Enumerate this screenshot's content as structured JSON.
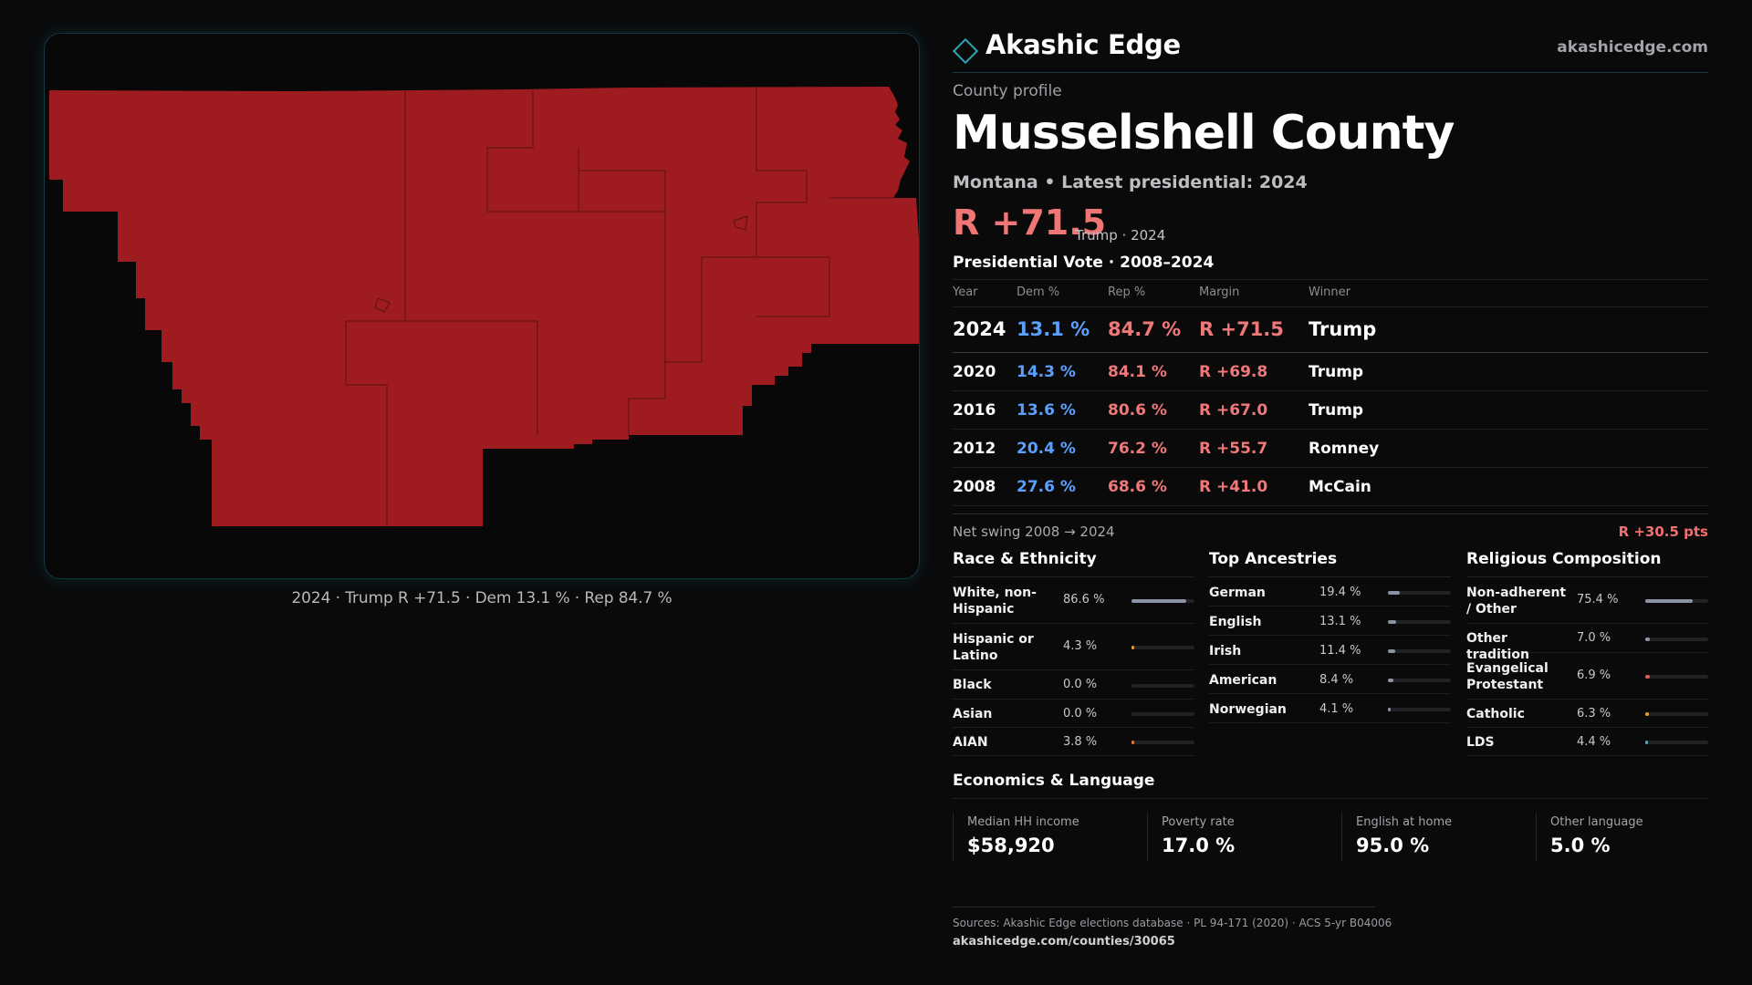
{
  "map": {
    "fill_color": "#9e1b1f",
    "caption": "2024 · Trump  R +71.5 · Dem 13.1 % · Rep 84.7 %"
  },
  "brand": {
    "name": "Akashic Edge",
    "url": "akashicedge.com",
    "icon": "diamond-logo-icon"
  },
  "profile": {
    "kicker": "County profile",
    "title": "Musselshell County",
    "subtitle": "Montana • Latest presidential: 2024",
    "headline_margin": "R +71.5",
    "headline_note": "Trump · 2024"
  },
  "vote": {
    "section_title": "Presidential Vote · 2008–2024",
    "headers": {
      "year": "Year",
      "dem": "Dem %",
      "rep": "Rep %",
      "margin": "Margin",
      "winner": "Winner"
    },
    "rows": [
      {
        "year": "2024",
        "dem": "13.1 %",
        "rep": "84.7 %",
        "margin": "R +71.5",
        "winner": "Trump"
      },
      {
        "year": "2020",
        "dem": "14.3 %",
        "rep": "84.1 %",
        "margin": "R +69.8",
        "winner": "Trump"
      },
      {
        "year": "2016",
        "dem": "13.6 %",
        "rep": "80.6 %",
        "margin": "R +67.0",
        "winner": "Trump"
      },
      {
        "year": "2012",
        "dem": "20.4 %",
        "rep": "76.2 %",
        "margin": "R +55.7",
        "winner": "Romney"
      },
      {
        "year": "2008",
        "dem": "27.6 %",
        "rep": "68.6 %",
        "margin": "R +41.0",
        "winner": "McCain"
      }
    ],
    "swing_label": "Net swing 2008 → 2024",
    "swing_value": "R +30.5 pts"
  },
  "race": {
    "title": "Race & Ethnicity",
    "items": [
      {
        "label": "White, non-Hispanic",
        "value": "86.6 %",
        "fraction": 0.866,
        "color": "#8a94a6"
      },
      {
        "label": "Hispanic or Latino",
        "value": "4.3 %",
        "fraction": 0.043,
        "color": "#e0a030"
      },
      {
        "label": "Black",
        "value": "0.0 %",
        "fraction": 0.0,
        "color": "#8a94a6"
      },
      {
        "label": "Asian",
        "value": "0.0 %",
        "fraction": 0.0,
        "color": "#8a94a6"
      },
      {
        "label": "AIAN",
        "value": "3.8 %",
        "fraction": 0.038,
        "color": "#e07a3a"
      }
    ]
  },
  "ancestry": {
    "title": "Top Ancestries",
    "items": [
      {
        "label": "German",
        "value": "19.4 %",
        "fraction": 0.194,
        "color": "#8a94a6"
      },
      {
        "label": "English",
        "value": "13.1 %",
        "fraction": 0.131,
        "color": "#8a94a6"
      },
      {
        "label": "Irish",
        "value": "11.4 %",
        "fraction": 0.114,
        "color": "#8a94a6"
      },
      {
        "label": "American",
        "value": "8.4 %",
        "fraction": 0.084,
        "color": "#8a94a6"
      },
      {
        "label": "Norwegian",
        "value": "4.1 %",
        "fraction": 0.041,
        "color": "#8a94a6"
      }
    ]
  },
  "religion": {
    "title": "Religious Composition",
    "items": [
      {
        "label": "Non-adherent / Other",
        "value": "75.4 %",
        "fraction": 0.754,
        "color": "#8a94a6"
      },
      {
        "label": "Other tradition",
        "value": "7.0 %",
        "fraction": 0.07,
        "color": "#8a94a6"
      },
      {
        "label": "Evangelical Protestant",
        "value": "6.9 %",
        "fraction": 0.069,
        "color": "#e05a5a"
      },
      {
        "label": "Catholic",
        "value": "6.3 %",
        "fraction": 0.063,
        "color": "#e0a030"
      },
      {
        "label": "LDS",
        "value": "4.4 %",
        "fraction": 0.044,
        "color": "#3ab0c0"
      }
    ]
  },
  "economics": {
    "title": "Economics & Language",
    "items": [
      {
        "label": "Median HH income",
        "value": "$58,920"
      },
      {
        "label": "Poverty rate",
        "value": "17.0 %"
      },
      {
        "label": "English at home",
        "value": "95.0 %"
      },
      {
        "label": "Other language",
        "value": "5.0 %"
      }
    ]
  },
  "sources": {
    "text": "Sources: Akashic Edge elections database · PL 94-171 (2020) · ACS 5-yr B04006",
    "url": "akashicedge.com/counties/30065"
  }
}
